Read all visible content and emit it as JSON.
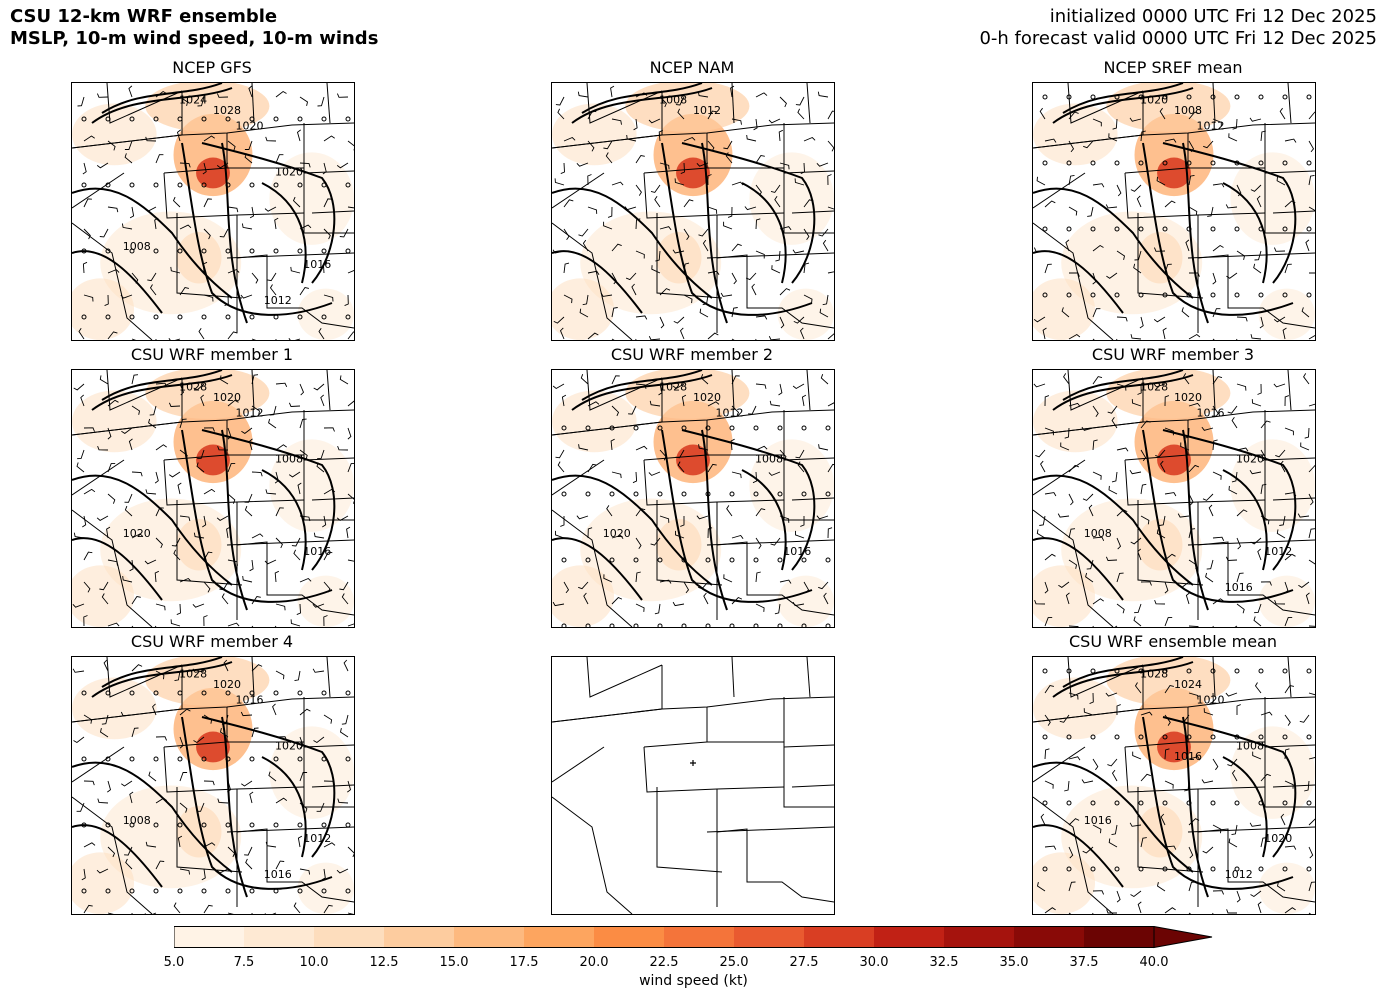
{
  "header": {
    "title_line1": "CSU 12-km WRF ensemble",
    "title_line2": "MSLP, 10-m wind speed, 10-m winds",
    "init_line": "initialized 0000 UTC Fri 12 Dec 2025",
    "valid_line": "0-h forecast valid 0000 UTC Fri 12 Dec 2025"
  },
  "panels": [
    {
      "title": "NCEP GFS",
      "labels": [
        "1024",
        "1028",
        "1020",
        "1020",
        "1008",
        "1016",
        "1012"
      ],
      "has_data": true
    },
    {
      "title": "NCEP NAM",
      "labels": [
        "1008",
        "1012"
      ],
      "has_data": true
    },
    {
      "title": "NCEP SREF mean",
      "labels": [
        "1020",
        "1008",
        "1012"
      ],
      "has_data": true
    },
    {
      "title": "CSU WRF member 1",
      "labels": [
        "1028",
        "1020",
        "1012",
        "1008",
        "1020",
        "1016"
      ],
      "has_data": true
    },
    {
      "title": "CSU WRF member 2",
      "labels": [
        "1028",
        "1020",
        "1012",
        "1008",
        "1020",
        "1016"
      ],
      "has_data": true
    },
    {
      "title": "CSU WRF member 3",
      "labels": [
        "1028",
        "1020",
        "1016",
        "1020",
        "1008",
        "1012",
        "1016"
      ],
      "has_data": true
    },
    {
      "title": "CSU WRF member 4",
      "labels": [
        "1028",
        "1020",
        "1016",
        "1020",
        "1008",
        "1012",
        "1016"
      ],
      "has_data": true
    },
    {
      "title": "",
      "labels": [],
      "has_data": false
    },
    {
      "title": "CSU WRF ensemble mean",
      "labels": [
        "1028",
        "1024",
        "1020",
        "1008",
        "1016",
        "1020",
        "1012",
        "1016"
      ],
      "has_data": true
    }
  ],
  "colorbar": {
    "label": "wind speed (kt)",
    "ticks": [
      "5.0",
      "7.5",
      "10.0",
      "12.5",
      "15.0",
      "17.5",
      "20.0",
      "22.5",
      "25.0",
      "27.5",
      "30.0",
      "32.5",
      "35.0",
      "37.5",
      "40.0"
    ],
    "colors": [
      "#fff3e6",
      "#fee9d3",
      "#fdddbd",
      "#fdcc9f",
      "#fdb97f",
      "#fda55f",
      "#fb8c44",
      "#f4743a",
      "#e95a30",
      "#d93e23",
      "#c12115",
      "#a5130d",
      "#890a07",
      "#6b0403"
    ]
  }
}
